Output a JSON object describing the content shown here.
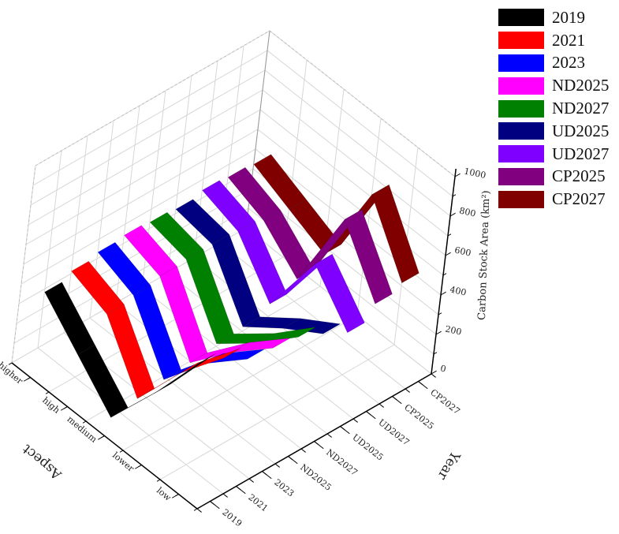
{
  "chart_data": {
    "type": "3d-ribbon",
    "title": "",
    "xlabel": "Aspect",
    "ylabel": "Year",
    "zlabel": "Carbon Stock Area (km²)",
    "aspect_categories": [
      "low",
      "lower",
      "medium",
      "high",
      "higher"
    ],
    "year_categories": [
      "2019",
      "2021",
      "2023",
      "ND2025",
      "ND2027",
      "UD2025",
      "UD2027",
      "CP2025",
      "CP2027"
    ],
    "zlim": [
      0,
      1000
    ],
    "z_ticks": [
      "0",
      "200",
      "400",
      "600",
      "800",
      "1000"
    ],
    "grid": true,
    "legend_position": "top-right",
    "series": [
      {
        "name": "2019",
        "color": "#000000",
        "values": [
          650,
          350,
          80,
          250,
          420
        ]
      },
      {
        "name": "2021",
        "color": "#ff0000",
        "values": [
          600,
          380,
          100,
          380,
          450
        ]
      },
      {
        "name": "2023",
        "color": "#0000ff",
        "values": [
          520,
          350,
          120,
          400,
          470
        ]
      },
      {
        "name": "ND2025",
        "color": "#ff00ff",
        "values": [
          500,
          330,
          130,
          420,
          480
        ]
      },
      {
        "name": "ND2027",
        "color": "#008000",
        "values": [
          480,
          300,
          150,
          430,
          470
        ]
      },
      {
        "name": "UD2025",
        "color": "#000080",
        "values": [
          420,
          300,
          160,
          430,
          460
        ]
      },
      {
        "name": "UD2027",
        "color": "#8000ff",
        "values": [
          350,
          550,
          200,
          420,
          480
        ]
      },
      {
        "name": "CP2025",
        "color": "#800080",
        "values": [
          420,
          700,
          250,
          400,
          470
        ]
      },
      {
        "name": "CP2027",
        "color": "#800000",
        "values": [
          450,
          750,
          300,
          380,
          460
        ]
      }
    ]
  }
}
